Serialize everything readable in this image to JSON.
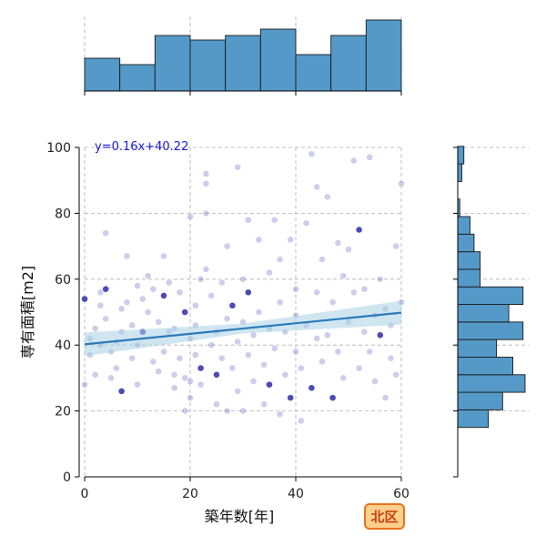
{
  "chart_data": {
    "type": "scatter",
    "x_label": "築年数[年]",
    "y_label": "専有面積[m2]",
    "xlim": [
      0,
      60
    ],
    "ylim": [
      0,
      100
    ],
    "x_ticks": [
      "0",
      "20",
      "40",
      "60"
    ],
    "y_ticks": [
      "0",
      "20",
      "40",
      "60",
      "80",
      "100"
    ],
    "grid": true,
    "regression": {
      "equation": "y=0.16x+40.22",
      "slope": 0.16,
      "intercept": 40.22
    },
    "badge": "北区",
    "colors": {
      "point": "#1a1aa8",
      "point_dark": "#1010a0",
      "line": "#2a7ab8",
      "ci_band": "#a8d2e6",
      "hist_fill": "#5499c7",
      "badge_fill": "#ffcf8f",
      "badge_border": "#e8731a"
    },
    "marginal_x": {
      "bin_edges": [
        0,
        6.67,
        13.33,
        20,
        26.67,
        33.33,
        40,
        46.67,
        53.33,
        60
      ],
      "counts": [
        36,
        29,
        61,
        56,
        61,
        68,
        40,
        61,
        78
      ]
    },
    "marginal_y": {
      "bin_edges": [
        15,
        20.33,
        25.67,
        31,
        36.33,
        41.67,
        47,
        52.33,
        57.67,
        63,
        68.33,
        73.67,
        79,
        84.33,
        89.67,
        95,
        100.33
      ],
      "counts": [
        15,
        22,
        33,
        27,
        19,
        32,
        25,
        32,
        11,
        11,
        8,
        6,
        1,
        0,
        2,
        3
      ]
    },
    "series": [
      {
        "name": "",
        "points": [
          [
            0,
            54
          ],
          [
            0,
            28
          ],
          [
            1,
            42
          ],
          [
            1,
            37
          ],
          [
            2,
            45
          ],
          [
            2,
            31
          ],
          [
            3,
            52
          ],
          [
            3,
            56
          ],
          [
            3,
            40
          ],
          [
            4,
            57
          ],
          [
            4,
            48
          ],
          [
            4,
            74
          ],
          [
            5,
            38
          ],
          [
            5,
            30
          ],
          [
            6,
            33
          ],
          [
            6,
            41
          ],
          [
            7,
            51
          ],
          [
            7,
            44
          ],
          [
            7,
            26
          ],
          [
            8,
            67
          ],
          [
            8,
            53
          ],
          [
            9,
            36
          ],
          [
            9,
            46
          ],
          [
            10,
            40
          ],
          [
            10,
            58
          ],
          [
            10,
            28
          ],
          [
            11,
            54
          ],
          [
            11,
            44
          ],
          [
            12,
            50
          ],
          [
            12,
            61
          ],
          [
            13,
            57
          ],
          [
            13,
            35
          ],
          [
            14,
            47
          ],
          [
            14,
            32
          ],
          [
            15,
            67
          ],
          [
            15,
            38
          ],
          [
            15,
            55
          ],
          [
            16,
            44
          ],
          [
            16,
            59
          ],
          [
            17,
            31
          ],
          [
            17,
            27
          ],
          [
            17,
            45
          ],
          [
            18,
            36
          ],
          [
            18,
            56
          ],
          [
            19,
            20
          ],
          [
            19,
            50
          ],
          [
            19,
            30
          ],
          [
            20,
            42
          ],
          [
            20,
            29
          ],
          [
            20,
            79
          ],
          [
            20,
            24
          ],
          [
            21,
            37
          ],
          [
            21,
            52
          ],
          [
            21,
            46
          ],
          [
            22,
            33
          ],
          [
            22,
            60
          ],
          [
            22,
            28
          ],
          [
            23,
            92
          ],
          [
            23,
            89
          ],
          [
            23,
            63
          ],
          [
            23,
            80
          ],
          [
            24,
            40
          ],
          [
            24,
            55
          ],
          [
            25,
            31
          ],
          [
            25,
            44
          ],
          [
            25,
            22
          ],
          [
            26,
            59
          ],
          [
            26,
            36
          ],
          [
            27,
            48
          ],
          [
            27,
            20
          ],
          [
            27,
            70
          ],
          [
            28,
            33
          ],
          [
            28,
            52
          ],
          [
            29,
            41
          ],
          [
            29,
            26
          ],
          [
            29,
            94
          ],
          [
            30,
            47
          ],
          [
            30,
            60
          ],
          [
            30,
            20
          ],
          [
            31,
            37
          ],
          [
            31,
            78
          ],
          [
            31,
            56
          ],
          [
            32,
            43
          ],
          [
            32,
            29
          ],
          [
            33,
            72
          ],
          [
            33,
            50
          ],
          [
            34,
            34
          ],
          [
            34,
            22
          ],
          [
            35,
            45
          ],
          [
            35,
            62
          ],
          [
            35,
            28
          ],
          [
            36,
            78
          ],
          [
            36,
            39
          ],
          [
            37,
            53
          ],
          [
            37,
            19
          ],
          [
            37,
            66
          ],
          [
            38,
            31
          ],
          [
            38,
            44
          ],
          [
            39,
            72
          ],
          [
            39,
            24
          ],
          [
            40,
            49
          ],
          [
            40,
            38
          ],
          [
            40,
            57
          ],
          [
            41,
            17
          ],
          [
            41,
            33
          ],
          [
            42,
            77
          ],
          [
            42,
            46
          ],
          [
            43,
            98
          ],
          [
            43,
            27
          ],
          [
            44,
            42
          ],
          [
            44,
            88
          ],
          [
            44,
            56
          ],
          [
            45,
            66
          ],
          [
            45,
            35
          ],
          [
            46,
            85
          ],
          [
            46,
            43
          ],
          [
            47,
            53
          ],
          [
            47,
            24
          ],
          [
            48,
            71
          ],
          [
            48,
            38
          ],
          [
            49,
            61
          ],
          [
            49,
            30
          ],
          [
            50,
            69
          ],
          [
            50,
            47
          ],
          [
            51,
            96
          ],
          [
            51,
            56
          ],
          [
            52,
            75
          ],
          [
            52,
            33
          ],
          [
            53,
            44
          ],
          [
            53,
            57
          ],
          [
            54,
            97
          ],
          [
            54,
            38
          ],
          [
            55,
            49
          ],
          [
            55,
            29
          ],
          [
            56,
            60
          ],
          [
            56,
            43
          ],
          [
            57,
            24
          ],
          [
            57,
            51
          ],
          [
            58,
            36
          ],
          [
            58,
            46
          ],
          [
            59,
            31
          ],
          [
            59,
            70
          ],
          [
            60,
            89
          ],
          [
            60,
            53
          ]
        ]
      }
    ]
  }
}
